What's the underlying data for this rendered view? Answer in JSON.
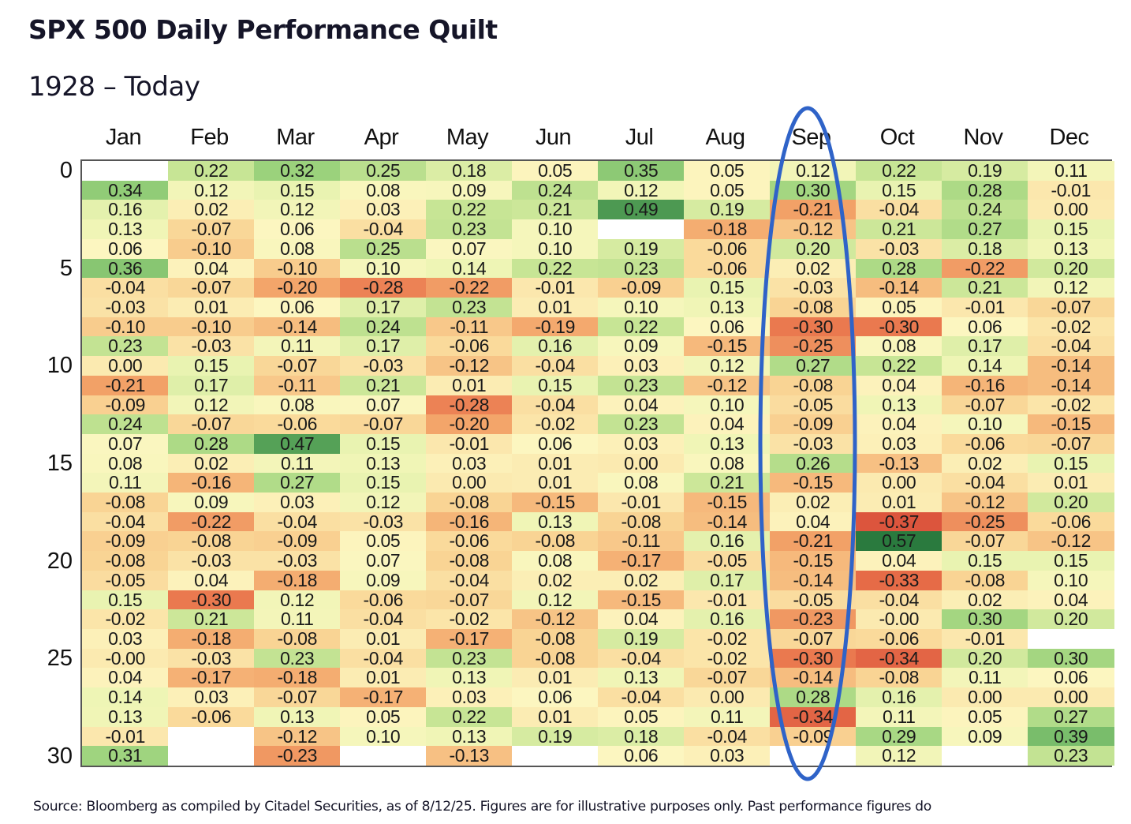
{
  "header": {
    "title": "SPX 500 Daily Performance Quilt",
    "subtitle": "1928 – Today"
  },
  "footnote": "Source: Bloomberg as compiled by Citadel Securities, as of 8/12/25. Figures are for illustrative purposes only. Past performance figures do",
  "highlight": {
    "month": "Sep",
    "color": "#2f63c8"
  },
  "chart_data": {
    "type": "heatmap",
    "title": "SPX 500 Daily Performance Quilt",
    "subtitle": "1928 – Today",
    "xlabel": "",
    "ylabel": "",
    "x": [
      "Jan",
      "Feb",
      "Mar",
      "Apr",
      "May",
      "Jun",
      "Jul",
      "Aug",
      "Sep",
      "Oct",
      "Nov",
      "Dec"
    ],
    "y_ticks": [
      "0",
      "5",
      "10",
      "15",
      "20",
      "25",
      "30"
    ],
    "y_tick_values": [
      0,
      5,
      10,
      15,
      20,
      25,
      30
    ],
    "y_range": [
      0,
      30
    ],
    "color_scale": {
      "low": "#a50f15",
      "mid": "#fef7b5",
      "high": "#1e7a38",
      "domain": [
        -0.4,
        0,
        0.6
      ]
    },
    "columns": [
      {
        "month": "Jan",
        "values": [
          null,
          "0.34",
          "0.16",
          "0.13",
          "0.06",
          "0.36",
          "-0.04",
          "-0.03",
          "-0.10",
          "0.23",
          "0.00",
          "-0.21",
          "-0.09",
          "0.24",
          "0.07",
          "0.08",
          "0.11",
          "-0.08",
          "-0.04",
          "-0.09",
          "-0.08",
          "-0.05",
          "0.15",
          "-0.02",
          "0.03",
          "-0.00",
          "0.04",
          "0.14",
          "0.13",
          "-0.01",
          "0.31"
        ]
      },
      {
        "month": "Feb",
        "values": [
          "0.22",
          "0.12",
          "0.02",
          "-0.07",
          "-0.10",
          "0.04",
          "-0.07",
          "0.01",
          "-0.10",
          "-0.03",
          "0.15",
          "0.17",
          "0.12",
          "-0.07",
          "0.28",
          "0.02",
          "-0.16",
          "0.09",
          "-0.22",
          "-0.08",
          "-0.03",
          "0.04",
          "-0.30",
          "0.21",
          "-0.18",
          "-0.03",
          "-0.17",
          "0.03",
          "-0.06",
          null,
          null
        ]
      },
      {
        "month": "Mar",
        "values": [
          "0.32",
          "0.15",
          "0.12",
          "0.06",
          "0.08",
          "-0.10",
          "-0.20",
          "0.06",
          "-0.14",
          "0.11",
          "-0.07",
          "-0.11",
          "0.08",
          "-0.06",
          "0.47",
          "0.11",
          "0.27",
          "0.03",
          "-0.04",
          "-0.09",
          "-0.03",
          "-0.18",
          "0.12",
          "0.11",
          "-0.08",
          "0.23",
          "-0.18",
          "-0.07",
          "0.13",
          "-0.12",
          "-0.23"
        ]
      },
      {
        "month": "Apr",
        "values": [
          "0.25",
          "0.08",
          "0.03",
          "-0.04",
          "0.25",
          "0.10",
          "-0.28",
          "0.17",
          "0.24",
          "0.17",
          "-0.03",
          "0.21",
          "0.07",
          "-0.07",
          "0.15",
          "0.13",
          "0.15",
          "0.12",
          "-0.03",
          "0.05",
          "0.07",
          "0.09",
          "-0.06",
          "-0.04",
          "0.01",
          "-0.04",
          "0.01",
          "-0.17",
          "0.05",
          "0.10",
          null
        ]
      },
      {
        "month": "May",
        "values": [
          "0.18",
          "0.09",
          "0.22",
          "0.23",
          "0.07",
          "0.14",
          "-0.22",
          "0.23",
          "-0.11",
          "-0.06",
          "-0.12",
          "0.01",
          "-0.28",
          "-0.20",
          "-0.01",
          "0.03",
          "0.00",
          "-0.08",
          "-0.16",
          "-0.06",
          "-0.08",
          "-0.04",
          "-0.07",
          "-0.02",
          "-0.17",
          "0.23",
          "0.13",
          "0.03",
          "0.22",
          "0.13",
          "-0.13"
        ]
      },
      {
        "month": "Jun",
        "values": [
          "0.05",
          "0.24",
          "0.21",
          "0.10",
          "0.10",
          "0.22",
          "-0.01",
          "0.01",
          "-0.19",
          "0.16",
          "-0.04",
          "0.15",
          "-0.04",
          "-0.02",
          "0.06",
          "0.01",
          "0.01",
          "-0.15",
          "0.13",
          "-0.08",
          "0.08",
          "0.02",
          "0.12",
          "-0.12",
          "-0.08",
          "-0.08",
          "0.01",
          "0.06",
          "0.01",
          "0.19",
          null
        ]
      },
      {
        "month": "Jul",
        "values": [
          "0.35",
          "0.12",
          "0.49",
          null,
          "0.19",
          "0.23",
          "-0.09",
          "0.10",
          "0.22",
          "0.09",
          "0.03",
          "0.23",
          "0.04",
          "0.23",
          "0.03",
          "0.00",
          "0.08",
          "-0.01",
          "-0.08",
          "-0.11",
          "-0.17",
          "0.02",
          "-0.15",
          "0.04",
          "0.19",
          "-0.04",
          "0.13",
          "-0.04",
          "0.05",
          "0.18",
          "0.06"
        ]
      },
      {
        "month": "Aug",
        "values": [
          "0.05",
          "0.05",
          "0.19",
          "-0.18",
          "-0.06",
          "-0.06",
          "0.15",
          "0.13",
          "0.06",
          "-0.15",
          "0.12",
          "-0.12",
          "0.10",
          "0.04",
          "0.13",
          "0.08",
          "0.21",
          "-0.15",
          "-0.14",
          "0.16",
          "-0.05",
          "0.17",
          "-0.01",
          "0.16",
          "-0.02",
          "-0.02",
          "-0.07",
          "0.00",
          "0.11",
          "-0.04",
          "0.03"
        ]
      },
      {
        "month": "Sep",
        "values": [
          "0.12",
          "0.30",
          "-0.21",
          "-0.12",
          "0.20",
          "0.02",
          "-0.03",
          "-0.08",
          "-0.30",
          "-0.25",
          "0.27",
          "-0.08",
          "-0.05",
          "-0.09",
          "-0.03",
          "0.26",
          "-0.15",
          "0.02",
          "0.04",
          "-0.21",
          "-0.15",
          "-0.14",
          "-0.05",
          "-0.23",
          "-0.07",
          "-0.30",
          "-0.14",
          "0.28",
          "-0.34",
          "-0.09",
          null
        ]
      },
      {
        "month": "Oct",
        "values": [
          "0.22",
          "0.15",
          "-0.04",
          "0.21",
          "-0.03",
          "0.28",
          "-0.14",
          "0.05",
          "-0.30",
          "0.08",
          "0.22",
          "0.04",
          "0.13",
          "0.04",
          "0.03",
          "-0.13",
          "0.00",
          "0.01",
          "-0.37",
          "0.57",
          "0.04",
          "-0.33",
          "-0.04",
          "-0.00",
          "-0.06",
          "-0.34",
          "-0.08",
          "0.16",
          "0.11",
          "0.29",
          "0.12"
        ]
      },
      {
        "month": "Nov",
        "values": [
          "0.19",
          "0.28",
          "0.24",
          "0.27",
          "0.18",
          "-0.22",
          "0.21",
          "-0.01",
          "0.06",
          "0.17",
          "0.14",
          "-0.16",
          "-0.07",
          "0.10",
          "-0.06",
          "0.02",
          "-0.04",
          "-0.12",
          "-0.25",
          "-0.07",
          "0.15",
          "-0.08",
          "0.02",
          "0.30",
          "-0.01",
          "0.20",
          "0.11",
          "0.00",
          "0.05",
          "0.09",
          null
        ]
      },
      {
        "month": "Dec",
        "values": [
          "0.11",
          "-0.01",
          "0.00",
          "0.15",
          "0.13",
          "0.20",
          "0.12",
          "-0.07",
          "-0.02",
          "-0.04",
          "-0.14",
          "-0.14",
          "-0.02",
          "-0.15",
          "-0.07",
          "0.15",
          "0.01",
          "0.20",
          "-0.06",
          "-0.12",
          "0.15",
          "0.10",
          "0.04",
          "0.20",
          null,
          "0.30",
          "0.06",
          "0.00",
          "0.27",
          "0.39",
          "0.23"
        ]
      }
    ]
  }
}
